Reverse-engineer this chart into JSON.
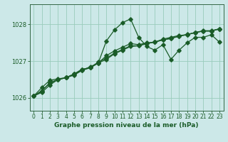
{
  "title": "Graphe pression niveau de la mer (hPa)",
  "bg_color": "#cce8e8",
  "grid_color": "#99ccbb",
  "line_color": "#1a5c28",
  "spine_color": "#336644",
  "xlim": [
    -0.5,
    23.5
  ],
  "ylim": [
    1025.65,
    1028.55
  ],
  "yticks": [
    1026,
    1027,
    1028
  ],
  "xticks": [
    0,
    1,
    2,
    3,
    4,
    5,
    6,
    7,
    8,
    9,
    10,
    11,
    12,
    13,
    14,
    15,
    16,
    17,
    18,
    19,
    20,
    21,
    22,
    23
  ],
  "series1_x": [
    0,
    1,
    2,
    3,
    4,
    5,
    6,
    7,
    8,
    9,
    10,
    11,
    12,
    13,
    14,
    15,
    16,
    17,
    18,
    19,
    20,
    21,
    22,
    23
  ],
  "series1_y": [
    1026.05,
    1026.15,
    1026.35,
    1026.5,
    1026.55,
    1026.65,
    1026.75,
    1026.85,
    1026.95,
    1027.55,
    1027.85,
    1028.05,
    1028.15,
    1027.65,
    1027.4,
    1027.3,
    1027.45,
    1027.05,
    1027.3,
    1027.5,
    1027.65,
    1027.65,
    1027.72,
    1027.52
  ],
  "series2_x": [
    0,
    1,
    2,
    3,
    4,
    5,
    6,
    7,
    8,
    9,
    10,
    11,
    12,
    13,
    14,
    15,
    16,
    17,
    18,
    19,
    20,
    21,
    22,
    23
  ],
  "series2_y": [
    1026.05,
    1026.28,
    1026.48,
    1026.52,
    1026.55,
    1026.65,
    1026.78,
    1026.82,
    1026.98,
    1027.08,
    1027.22,
    1027.32,
    1027.42,
    1027.42,
    1027.48,
    1027.52,
    1027.58,
    1027.62,
    1027.68,
    1027.73,
    1027.78,
    1027.82,
    1027.82,
    1027.88
  ],
  "series3_x": [
    0,
    1,
    2,
    3,
    4,
    5,
    6,
    7,
    8,
    9,
    10,
    11,
    12,
    13,
    14,
    15,
    16,
    17,
    18,
    19,
    20,
    21,
    22,
    23
  ],
  "series3_y": [
    1026.05,
    1026.18,
    1026.42,
    1026.5,
    1026.55,
    1026.65,
    1026.78,
    1026.82,
    1026.95,
    1027.15,
    1027.28,
    1027.38,
    1027.48,
    1027.45,
    1027.5,
    1027.52,
    1027.6,
    1027.65,
    1027.7,
    1027.72,
    1027.78,
    1027.83,
    1027.83,
    1027.88
  ],
  "series4_x": [
    0,
    1,
    2,
    3,
    4,
    5,
    6,
    7,
    8,
    9,
    10,
    11,
    12,
    13,
    14,
    15,
    16,
    17,
    18,
    19,
    20,
    21,
    22,
    23
  ],
  "series4_y": [
    1026.05,
    1026.2,
    1026.4,
    1026.5,
    1026.55,
    1026.62,
    1026.75,
    1026.82,
    1026.95,
    1027.05,
    1027.2,
    1027.3,
    1027.4,
    1027.42,
    1027.48,
    1027.52,
    1027.58,
    1027.62,
    1027.68,
    1027.72,
    1027.78,
    1027.82,
    1027.82,
    1027.88
  ]
}
